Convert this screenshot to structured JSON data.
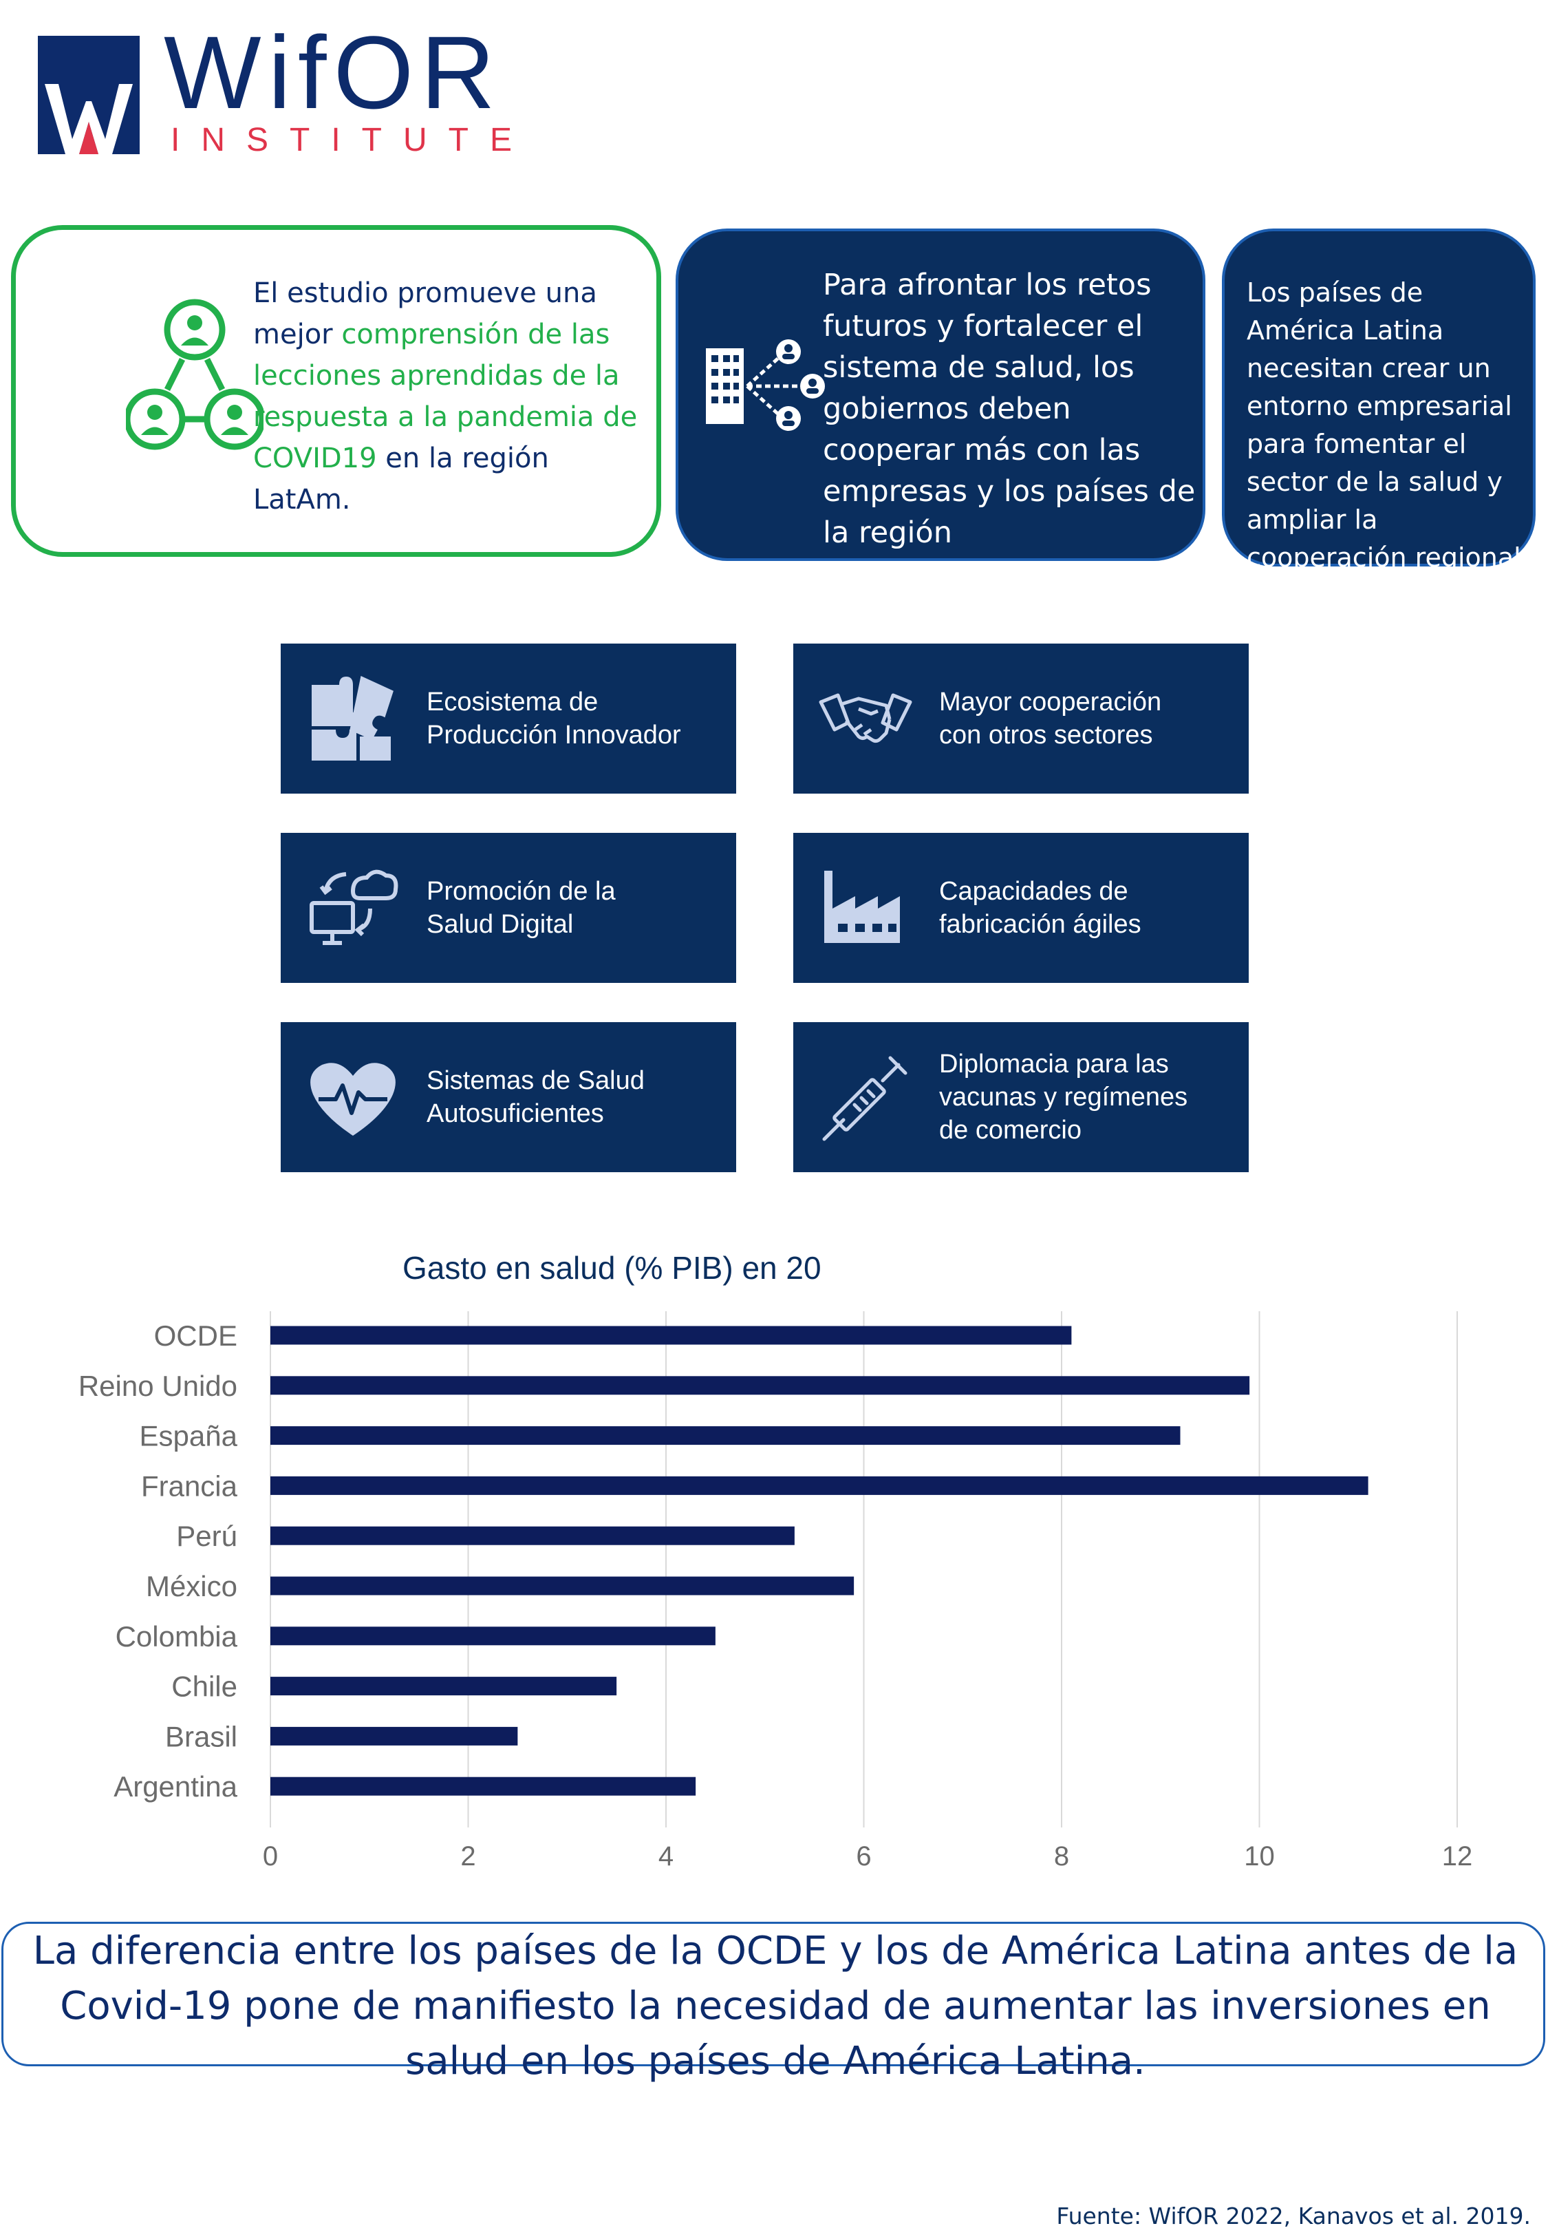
{
  "logo": {
    "word": "WifOR",
    "sub": "INSTITUTE"
  },
  "boxes": {
    "green": {
      "pre": "El estudio promueve una mejor ",
      "highlight": "comprensión de las lecciones aprendidas de la respuesta a la pandemia de COVID19",
      "post": " en la región LatAm."
    },
    "middle": "Para afrontar los retos futuros y fortalecer el sistema de salud, los gobiernos deben cooperar más con las empresas y los países de la región",
    "right": "Los países de América Latina necesitan crear un entorno empresarial para fomentar el sector de la salud y ampliar la cooperación regional."
  },
  "tiles": [
    {
      "label": "Ecosistema de\nProducción Innovador",
      "icon": "puzzle-icon"
    },
    {
      "label": "Mayor cooperación\ncon otros sectores",
      "icon": "handshake-icon"
    },
    {
      "label": "Promoción de la\nSalud Digital",
      "icon": "cloud-computer-icon"
    },
    {
      "label": "Capacidades de\nfabricación ágiles",
      "icon": "factory-icon"
    },
    {
      "label": "Sistemas de Salud\nAutosuficientes",
      "icon": "heart-pulse-icon"
    },
    {
      "label": "Diplomacia para las\nvacunas y regímenes\nde comercio",
      "icon": "syringe-icon"
    }
  ],
  "chart_data": {
    "type": "bar",
    "orientation": "horizontal",
    "title": "Gasto en salud (% PIB) en 20",
    "categories": [
      "OCDE",
      "Reino Unido",
      "España",
      "Francia",
      "Perú",
      "México",
      "Colombia",
      "Chile",
      "Brasil",
      "Argentina"
    ],
    "values": [
      8.1,
      9.9,
      9.2,
      11.1,
      5.3,
      5.9,
      4.5,
      3.5,
      2.5,
      4.3
    ],
    "xlim": [
      0,
      12
    ],
    "xticks": [
      0,
      2,
      4,
      6,
      8,
      10,
      12
    ],
    "grid": "vertical",
    "bar_color": "#0d1d5c"
  },
  "conclusion": "La diferencia entre los países de la OCDE y los de América Latina antes de la Covid-19 pone de manifiesto la necesidad de aumentar las inversiones en salud en los países de América Latina.",
  "source": "Fuente: WifOR 2022, Kanavos et al. 2019."
}
